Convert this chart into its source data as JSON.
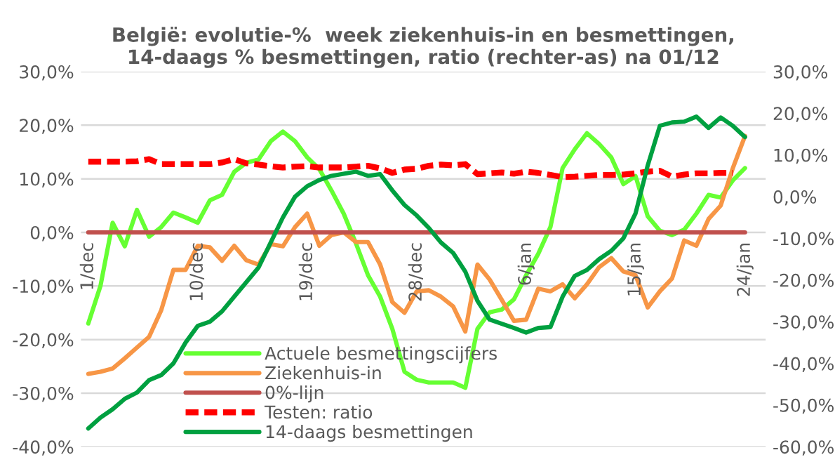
{
  "chart_data": {
    "type": "line",
    "title": "België: evolutie-%  week ziekenhuis-in en besmettingen,\n14-daags % besmettingen, ratio (rechter-as) na 01/12",
    "categories": [
      "1/dec",
      null,
      null,
      null,
      null,
      null,
      null,
      null,
      null,
      "10/dec",
      null,
      null,
      null,
      null,
      null,
      null,
      null,
      null,
      "19/dec",
      null,
      null,
      null,
      null,
      null,
      null,
      null,
      null,
      "28/dec",
      null,
      null,
      null,
      null,
      null,
      null,
      null,
      null,
      "6/jan",
      null,
      null,
      null,
      null,
      null,
      null,
      null,
      null,
      "15/jan",
      null,
      null,
      null,
      null,
      null,
      null,
      null,
      null,
      "24/jan"
    ],
    "series": [
      {
        "name": "Actuele besmettingscijfers",
        "color": "#66ff33",
        "values": [
          -17,
          -10,
          1.8,
          -2.6,
          4.2,
          -0.8,
          1,
          3.7,
          2.8,
          1.8,
          6,
          7,
          11.3,
          13,
          13.6,
          17,
          18.8,
          17,
          14,
          11.8,
          7.8,
          3.5,
          -2,
          -8,
          -12,
          -18,
          -26,
          -27.5,
          -28,
          -28,
          -28,
          -29,
          -18,
          -14.9,
          -14.4,
          -12.5,
          -8,
          -4,
          1,
          12,
          15.5,
          18.5,
          16.5,
          14,
          9,
          10.5,
          3,
          0.3,
          -0.5,
          0.5,
          3.5,
          7,
          6.5,
          9.7,
          12
        ]
      },
      {
        "name": "Ziekenhuis-in",
        "color": "#f79646",
        "values": [
          -26.4,
          -26,
          -25.4,
          -23.5,
          -21.5,
          -19.5,
          -14.5,
          -7,
          -7,
          -2.5,
          -2.8,
          -5.3,
          -2.5,
          -5.2,
          -6,
          -2.2,
          -2.6,
          1,
          3.5,
          -2.5,
          -0.5,
          0,
          -1.8,
          -1.8,
          -6,
          -13,
          -15,
          -11,
          -10.8,
          -12,
          -13.8,
          -18.5,
          -6,
          -8.8,
          -12.6,
          -16.5,
          -16.3,
          -10.5,
          -11,
          -9.7,
          -12.3,
          -9.7,
          -6.5,
          -4.8,
          -7.3,
          -8,
          -14,
          -11,
          -8.6,
          -1.5,
          -2.5,
          2.5,
          5,
          12,
          18
        ]
      },
      {
        "name": "0%-lijn",
        "color": "#c0504d",
        "values": [
          0,
          0,
          0,
          0,
          0,
          0,
          0,
          0,
          0,
          0,
          0,
          0,
          0,
          0,
          0,
          0,
          0,
          0,
          0,
          0,
          0,
          0,
          0,
          0,
          0,
          0,
          0,
          0,
          0,
          0,
          0,
          0,
          0,
          0,
          0,
          0,
          0,
          0,
          0,
          0,
          0,
          0,
          0,
          0,
          0,
          0,
          0,
          0,
          0,
          0,
          0,
          0,
          0,
          0,
          0
        ]
      },
      {
        "name": "Testen: ratio",
        "color": "#ff0000",
        "axis": "y2",
        "line_style": "dashed",
        "values": [
          8.4,
          8.4,
          8.4,
          8.4,
          8.5,
          9,
          7.8,
          7.8,
          7.8,
          7.8,
          7.8,
          8.2,
          9,
          8,
          7.7,
          7.3,
          7,
          7.2,
          7.3,
          7,
          7,
          7,
          7.2,
          7.4,
          6.8,
          5.7,
          6.5,
          6.7,
          7.4,
          7.7,
          7.5,
          7.8,
          5.4,
          5.6,
          5.8,
          5.5,
          6,
          5.7,
          5.2,
          4.7,
          4.8,
          5,
          5.2,
          5.2,
          5.3,
          5.6,
          6,
          6.2,
          4.8,
          5.3,
          5.6,
          5.6,
          5.7,
          5.7,
          null
        ]
      },
      {
        "name": "14-daags besmettingen",
        "color": "#00a040",
        "axis": "y2",
        "values": [
          -55.6,
          -53,
          -51,
          -48.5,
          -47,
          -44,
          -42.8,
          -40,
          -35,
          -31,
          -30,
          -27.5,
          -24,
          -20.5,
          -17,
          -11,
          -5,
          0,
          2.5,
          4,
          5,
          5.5,
          6,
          5,
          5.4,
          1.5,
          -2,
          -4.5,
          -7.5,
          -11,
          -13.5,
          -18,
          -25,
          -29.5,
          -30.5,
          -31.5,
          -32.6,
          -31.5,
          -31.3,
          -24,
          -19,
          -17.6,
          -15,
          -13,
          -10,
          -4,
          7.5,
          17,
          17.8,
          18,
          19.2,
          16.5,
          19,
          17,
          14.3
        ]
      }
    ],
    "ylim": [
      -40,
      30
    ],
    "yticks": [
      {
        "value": -40,
        "label": "-40,0%"
      },
      {
        "value": -30,
        "label": "-30,0%"
      },
      {
        "value": -20,
        "label": "-20,0%"
      },
      {
        "value": -10,
        "label": "-10,0%"
      },
      {
        "value": 0,
        "label": "0,0%"
      },
      {
        "value": 10,
        "label": "10,0%"
      },
      {
        "value": 20,
        "label": "20,0%"
      },
      {
        "value": 30,
        "label": "30,0%"
      }
    ],
    "y2lim": [
      -60,
      30
    ],
    "y2ticks": [
      {
        "value": -60,
        "label": "-60,0%"
      },
      {
        "value": -50,
        "label": "-50,0%"
      },
      {
        "value": -40,
        "label": "-40,0%"
      },
      {
        "value": -30,
        "label": "-30,0%"
      },
      {
        "value": -20,
        "label": "-20,0%"
      },
      {
        "value": -10,
        "label": "-10,0%"
      },
      {
        "value": 0,
        "label": "0,0%"
      },
      {
        "value": 10,
        "label": "10,0%"
      },
      {
        "value": 20,
        "label": "20,0%"
      },
      {
        "value": 30,
        "label": "30,0%"
      }
    ],
    "grid": "y",
    "legend": "bottom left",
    "line_style": "solid"
  }
}
